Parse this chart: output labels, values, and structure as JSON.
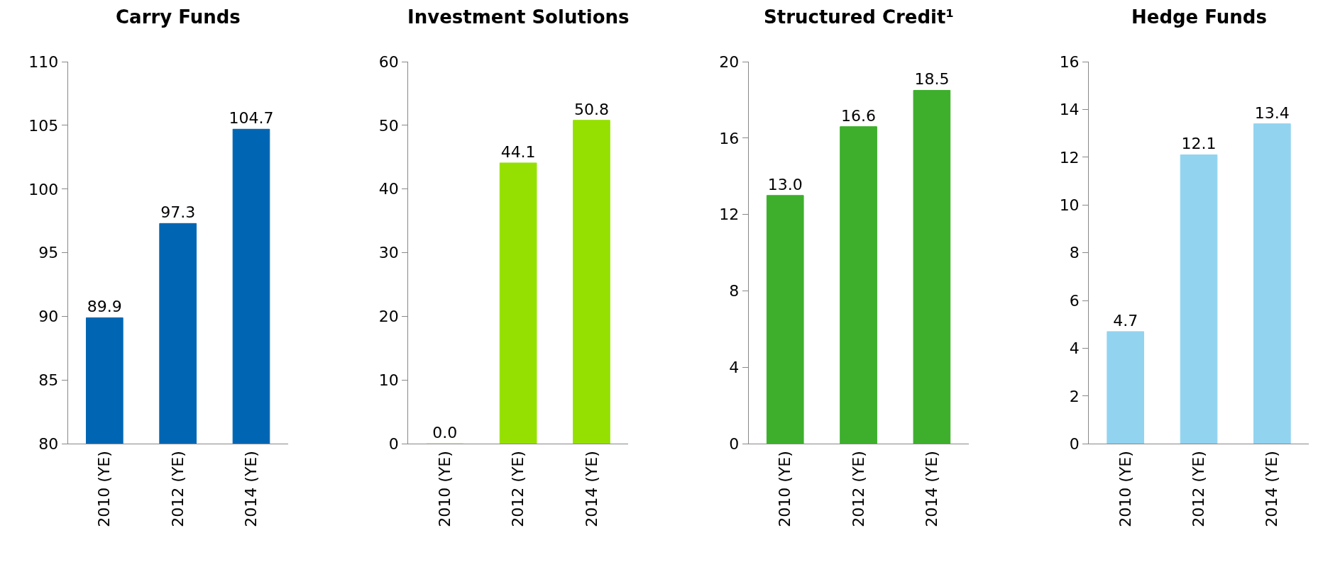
{
  "chart_data": [
    {
      "type": "bar",
      "title": "Carry Funds",
      "categories": [
        "2010 (YE)",
        "2012 (YE)",
        "2014 (YE)"
      ],
      "values": [
        89.9,
        97.3,
        104.7
      ],
      "color": "#0066b3",
      "ylim": [
        80,
        110
      ],
      "yticks": [
        80,
        85,
        90,
        95,
        100,
        105,
        110
      ],
      "data_labels": true,
      "value_labels": [
        "89.9",
        "97.3",
        "104.7"
      ]
    },
    {
      "type": "bar",
      "title": "Investment Solutions",
      "categories": [
        "2010 (YE)",
        "2012 (YE)",
        "2014 (YE)"
      ],
      "values": [
        0.0,
        44.1,
        50.8
      ],
      "color": "#95e000",
      "ylim": [
        0,
        60
      ],
      "yticks": [
        0,
        10,
        20,
        30,
        40,
        50,
        60
      ],
      "data_labels": true,
      "value_labels": [
        "0.0",
        "44.1",
        "50.8"
      ]
    },
    {
      "type": "bar",
      "title": "Structured Credit¹",
      "categories": [
        "2010 (YE)",
        "2012 (YE)",
        "2014 (YE)"
      ],
      "values": [
        13.0,
        16.6,
        18.5
      ],
      "color": "#3daf2c",
      "ylim": [
        0,
        20
      ],
      "yticks": [
        0,
        4,
        8,
        12,
        16,
        20
      ],
      "data_labels": true,
      "value_labels": [
        "13.0",
        "16.6",
        "18.5"
      ]
    },
    {
      "type": "bar",
      "title": "Hedge Funds",
      "categories": [
        "2010 (YE)",
        "2012 (YE)",
        "2014 (YE)"
      ],
      "values": [
        4.7,
        12.1,
        13.4
      ],
      "color": "#92d3f0",
      "ylim": [
        0,
        16
      ],
      "yticks": [
        0,
        2,
        4,
        6,
        8,
        10,
        12,
        14,
        16
      ],
      "data_labels": true,
      "value_labels": [
        "4.7",
        "12.1",
        "13.4"
      ]
    }
  ]
}
